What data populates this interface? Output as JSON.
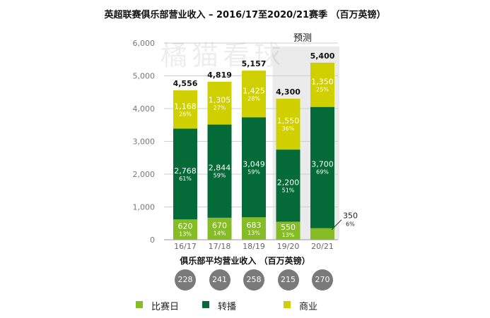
{
  "title": "英超联赛俱乐部营业收入 – 2016/17至2020/21赛季 （百万英镑）",
  "forecast_label": "预测",
  "watermark": "橘猫看球",
  "average_revenue": {
    "title": "俱乐部平均营业收入 （百万英镑）",
    "values": [
      "228",
      "241",
      "258",
      "215",
      "270"
    ]
  },
  "legend": [
    {
      "label": "比赛日",
      "color": "#86bc25"
    },
    {
      "label": "转播",
      "color": "#046a38"
    },
    {
      "label": "商业",
      "color": "#d0d000"
    }
  ],
  "chart_data": {
    "type": "bar",
    "stacked": true,
    "categories": [
      "16/17",
      "17/18",
      "18/19",
      "19/20",
      "20/21"
    ],
    "ylim": [
      0,
      6000
    ],
    "yticks": [
      "0",
      "1,000",
      "2,000",
      "3,000",
      "4,000",
      "5,000",
      "6,000"
    ],
    "forecast_categories": [
      "19/20",
      "20/21"
    ],
    "series": [
      {
        "name": "比赛日",
        "color": "#86bc25",
        "values": [
          620,
          670,
          683,
          550,
          350
        ],
        "labels": [
          "620",
          "670",
          "683",
          "550",
          "350"
        ],
        "pct": [
          "13%",
          "14%",
          "13%",
          "13%",
          "6%"
        ]
      },
      {
        "name": "转播",
        "color": "#046a38",
        "values": [
          2768,
          2844,
          3049,
          2200,
          3700
        ],
        "labels": [
          "2,768",
          "2,844",
          "3,049",
          "2,200",
          "3,700"
        ],
        "pct": [
          "61%",
          "59%",
          "59%",
          "51%",
          "69%"
        ]
      },
      {
        "name": "商业",
        "color": "#d0d000",
        "values": [
          1168,
          1305,
          1425,
          1550,
          1350
        ],
        "labels": [
          "1,168",
          "1,305",
          "1,425",
          "1,550",
          "1,350"
        ],
        "pct": [
          "26%",
          "27%",
          "28%",
          "36%",
          "25%"
        ]
      }
    ],
    "totals": [
      "4,556",
      "4,819",
      "5,157",
      "4,300",
      "5,400"
    ]
  }
}
